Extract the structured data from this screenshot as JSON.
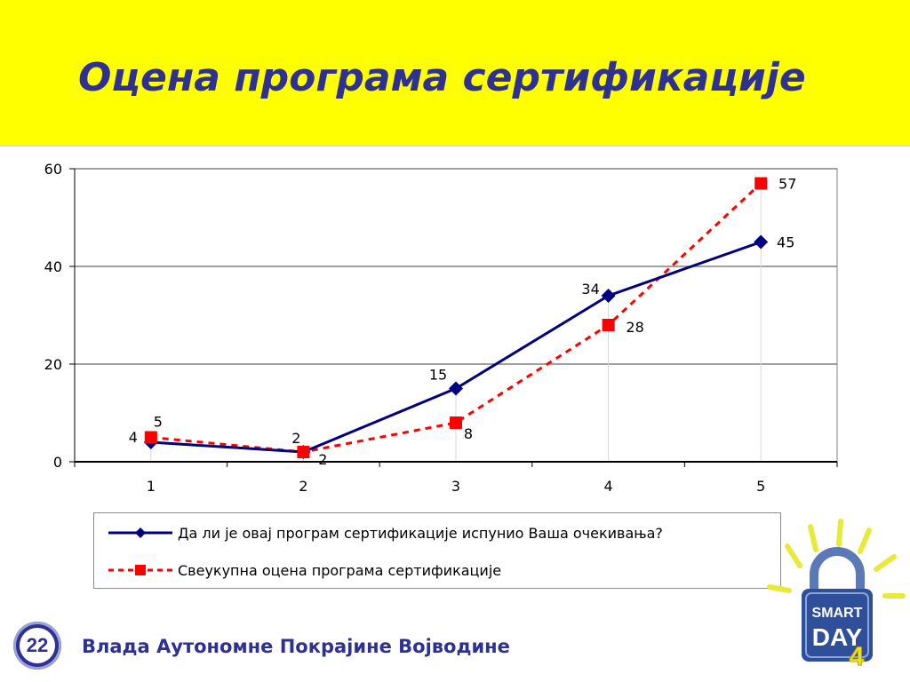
{
  "slide": {
    "title": "Оцена програма сертификације",
    "page_number": "22",
    "organization": "Влада Аутономне Покрајине Војводине"
  },
  "logo": {
    "line1": "SMART",
    "line2": "DAY",
    "number": "4"
  },
  "colors": {
    "title_band": "#ffff00",
    "title_text": "#2e3192",
    "series1": "#000080",
    "series2": "#ff0000",
    "gridline": "#808080"
  },
  "chart_data": {
    "type": "line",
    "x": [
      1,
      2,
      3,
      4,
      5
    ],
    "xlabel": "",
    "ylabel": "",
    "ylim": [
      0,
      60
    ],
    "yticks": [
      0,
      20,
      40,
      60
    ],
    "grid": true,
    "legend_position": "bottom",
    "series": [
      {
        "name": "Да ли је овај програм сертификације испунио Ваша очекивања?",
        "values": [
          4,
          2,
          15,
          34,
          45
        ],
        "marker": "diamond",
        "line_style": "solid",
        "color": "#000080"
      },
      {
        "name": "Свеукупна оцена програма сертификације",
        "values": [
          5,
          2,
          8,
          28,
          57
        ],
        "marker": "square",
        "line_style": "dashed",
        "color": "#ff0000"
      }
    ]
  }
}
